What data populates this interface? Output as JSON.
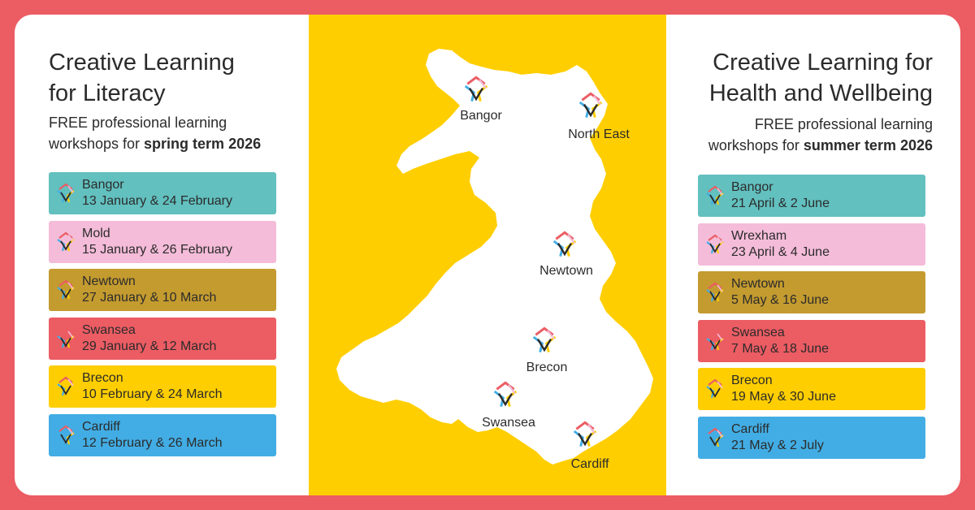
{
  "left": {
    "title_line1": "Creative Learning",
    "title_line2": "for Literacy",
    "sub_line1": "FREE professional learning",
    "sub_line2_prefix": "workshops for ",
    "sub_line2_bold": "spring term 2026",
    "items": [
      {
        "place": "Bangor",
        "dates": "13 January & 24 February",
        "color": "#62c0bf"
      },
      {
        "place": "Mold",
        "dates": "15 January & 26 February",
        "color": "#f4bcd9"
      },
      {
        "place": "Newtown",
        "dates": "27 January & 10 March",
        "color": "#c49b2f"
      },
      {
        "place": "Swansea",
        "dates": "29 January & 12 March",
        "color": "#ec5c63"
      },
      {
        "place": "Brecon",
        "dates": "10 February & 24 March",
        "color": "#ffce00"
      },
      {
        "place": "Cardiff",
        "dates": "12 February & 26 March",
        "color": "#42ade4"
      }
    ]
  },
  "right": {
    "title_line1": "Creative Learning for",
    "title_line2": "Health and Wellbeing",
    "sub_line1": "FREE professional learning",
    "sub_line2_prefix": "workshops for ",
    "sub_line2_bold": "summer term 2026",
    "items": [
      {
        "place": "Bangor",
        "dates": "21 April & 2 June",
        "color": "#62c0bf"
      },
      {
        "place": "Wrexham",
        "dates": "23 April & 4 June",
        "color": "#f4bcd9"
      },
      {
        "place": "Newtown",
        "dates": "5 May & 16 June",
        "color": "#c49b2f"
      },
      {
        "place": "Swansea",
        "dates": "7 May & 18 June",
        "color": "#ec5c63"
      },
      {
        "place": "Brecon",
        "dates": "19 May & 30 June",
        "color": "#ffce00"
      },
      {
        "place": "Cardiff",
        "dates": "21 May & 2 July",
        "color": "#42ade4"
      }
    ]
  },
  "map": {
    "background": "#ffce00",
    "pins": [
      {
        "label": "Bangor"
      },
      {
        "label": "North East"
      },
      {
        "label": "Newtown"
      },
      {
        "label": "Brecon"
      },
      {
        "label": "Swansea"
      },
      {
        "label": "Cardiff"
      }
    ]
  },
  "colors": {
    "border": "#ec5c63",
    "text": "#2b2b2b"
  },
  "icons": {
    "location_logo": "creative-learning-logo-icon"
  }
}
